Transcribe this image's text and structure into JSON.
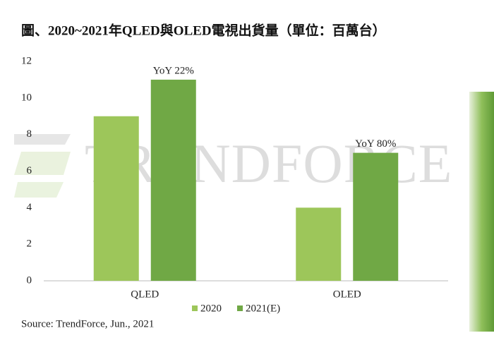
{
  "chart_data": {
    "type": "bar",
    "title": "圖、2020~2021年QLED與OLED電視出貨量（單位：百萬台）",
    "categories": [
      "QLED",
      "OLED"
    ],
    "series": [
      {
        "name": "2020",
        "color": "#9dc65a",
        "values": [
          9,
          4
        ]
      },
      {
        "name": "2021(E)",
        "color": "#70a845",
        "values": [
          11,
          7
        ]
      }
    ],
    "annotations": [
      "YoY 22%",
      "YoY 80%"
    ],
    "ylim": [
      0,
      12
    ],
    "yticks": [
      0,
      2,
      4,
      6,
      8,
      10,
      12
    ],
    "source": "Source: TrendForce, Jun., 2021",
    "watermark": "TRENDFORCE"
  }
}
